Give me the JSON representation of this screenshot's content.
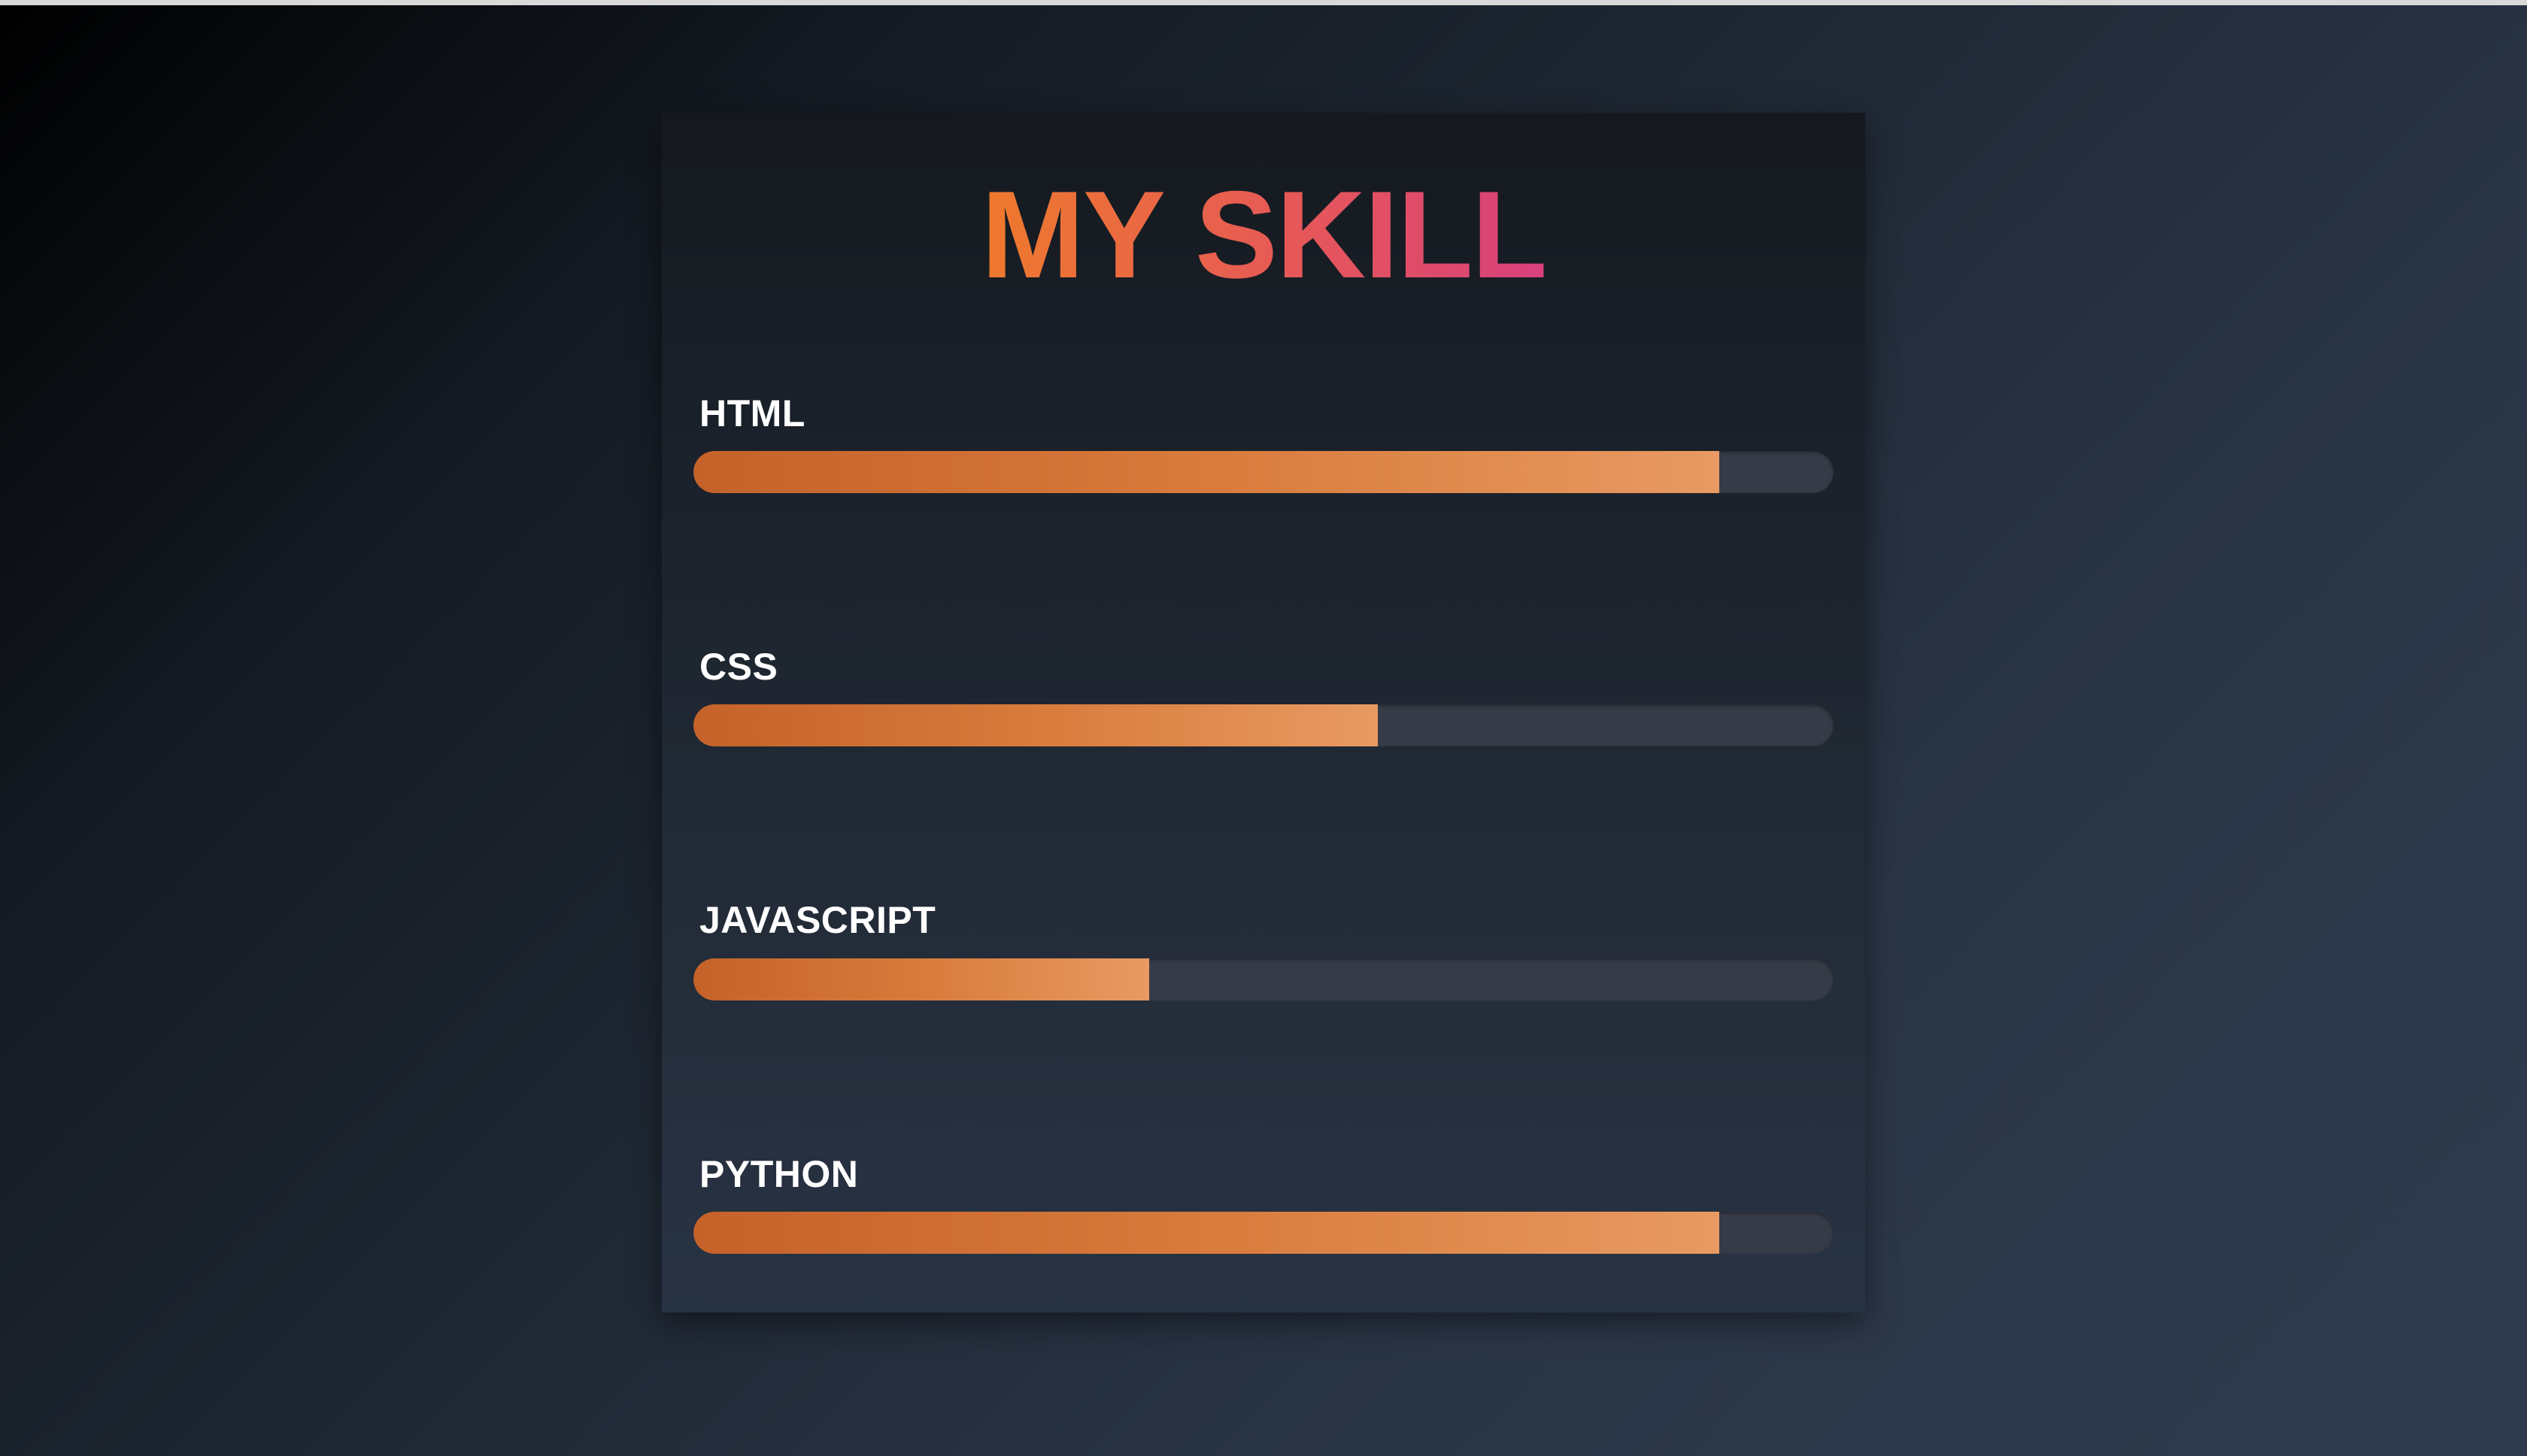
{
  "page": {
    "title": "MY SKILL"
  },
  "colors": {
    "background_dark": "#000000",
    "background_light": "#2f3b4d",
    "title_gradient_start": "#ee7a2c",
    "title_gradient_end": "#d8407c",
    "bar_fill_start": "#c5622a",
    "bar_fill_end": "#e89a62",
    "bar_track": "#363b48",
    "label_text": "#ffffff"
  },
  "skills": [
    {
      "label": "HTML",
      "level": 0.9
    },
    {
      "label": "CSS",
      "level": 0.6
    },
    {
      "label": "JAVASCRIPT",
      "level": 0.4
    },
    {
      "label": "PYTHON",
      "level": 0.9
    }
  ]
}
